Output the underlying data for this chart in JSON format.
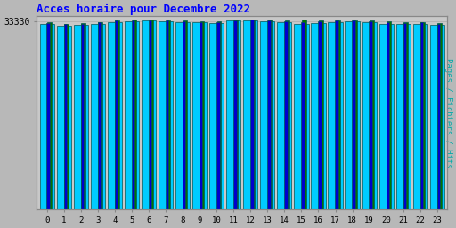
{
  "title": "Acces horaire pour Decembre 2022",
  "title_color": "#0000ff",
  "background_color": "#b8b8b8",
  "plot_bg_color": "#c8c8c8",
  "xlabel_values": [
    0,
    1,
    2,
    3,
    4,
    5,
    6,
    7,
    8,
    9,
    10,
    11,
    12,
    13,
    14,
    15,
    16,
    17,
    18,
    19,
    20,
    21,
    22,
    23
  ],
  "hits": [
    32800,
    32600,
    32700,
    32900,
    33100,
    33300,
    33400,
    33300,
    33200,
    33100,
    33000,
    33400,
    33500,
    33300,
    33100,
    32900,
    33000,
    33200,
    33300,
    33100,
    32900,
    32800,
    32900,
    32700
  ],
  "pages": [
    33000,
    32800,
    32900,
    33100,
    33400,
    33500,
    33500,
    33400,
    33300,
    33200,
    33200,
    33500,
    33600,
    33500,
    33300,
    33200,
    33300,
    33400,
    33500,
    33300,
    33100,
    33000,
    33100,
    32900
  ],
  "fichiers": [
    33100,
    32900,
    33000,
    33200,
    33500,
    33600,
    33600,
    33500,
    33400,
    33300,
    33300,
    33600,
    33700,
    33600,
    33400,
    33700,
    33400,
    33500,
    33500,
    33400,
    33300,
    33100,
    33200,
    33000
  ],
  "hits_color": "#00ccff",
  "pages_color": "#0000cc",
  "fichiers_color": "#007700",
  "bar_edge_color": "#005555",
  "ylim_min": 0,
  "ylim_max": 34200,
  "ytick_val": 33330,
  "ytick_label": "33330",
  "ylabel": "Pages / Fichiers / Hits",
  "ylabel_color": "#00aaaa",
  "bar_width": 0.85
}
